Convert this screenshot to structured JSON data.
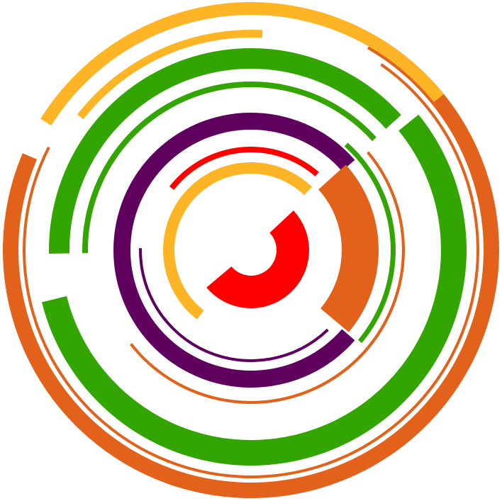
{
  "image": {
    "subject": "concentric-arc-rings-graphic",
    "background": "#ffffff"
  },
  "palette": {
    "orange": "#e2621c",
    "green": "#33a500",
    "yellow": "#fdb526",
    "purple": "#5f005e",
    "red": "#ff0000"
  }
}
